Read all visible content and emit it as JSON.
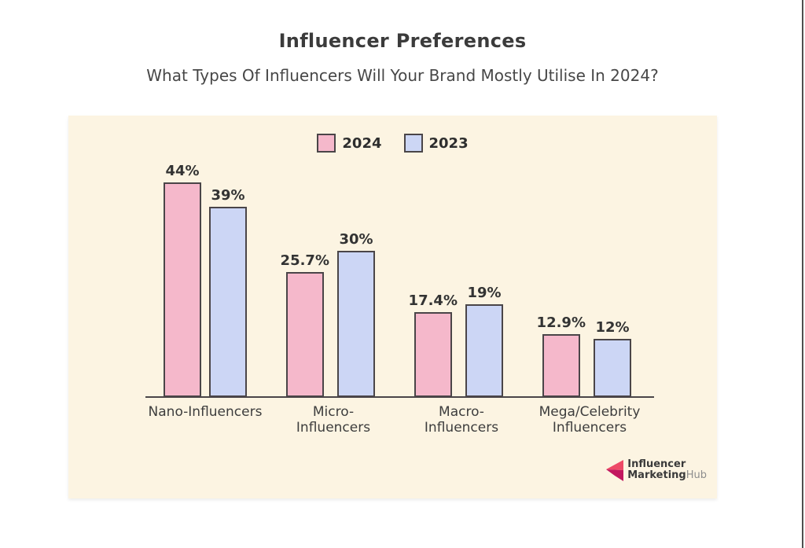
{
  "chart_data": {
    "type": "bar",
    "title": "Influencer Preferences",
    "subtitle": "What Types Of Influencers Will Your Brand Mostly Utilise In 2024?",
    "categories": [
      "Nano-Influencers",
      "Micro-Influencers",
      "Macro-Influencers",
      "Mega/Celebrity Influencers"
    ],
    "category_display": [
      "Nano-Influencers",
      "Micro-\nInfluencers",
      "Macro-\nInfluencers",
      "Mega/Celebrity\nInfluencers"
    ],
    "series": [
      {
        "name": "2024",
        "color": "#f5b8cb",
        "values": [
          44,
          25.7,
          17.4,
          12.9
        ],
        "labels": [
          "44%",
          "25.7%",
          "17.4%",
          "12.9%"
        ]
      },
      {
        "name": "2023",
        "color": "#ccd6f5",
        "values": [
          39,
          30,
          19,
          12
        ],
        "labels": [
          "39%",
          "30%",
          "19%",
          "12%"
        ]
      }
    ],
    "unit": "%",
    "ylim": [
      0,
      48
    ],
    "grid": false,
    "legend_position": "top-center"
  },
  "colors": {
    "panel_bg": "#fcf4e2",
    "bar_2024": "#f5b8cb",
    "bar_2023": "#ccd6f5",
    "bar_border": "#4a4548",
    "axis": "#4a4548",
    "text": "#3d3d3d",
    "logo_pink_light": "#ee4a67",
    "logo_pink_dark": "#c2175f"
  },
  "logo": {
    "line1": "Influencer",
    "line2_bold": "Marketing",
    "line2_light": "Hub"
  }
}
